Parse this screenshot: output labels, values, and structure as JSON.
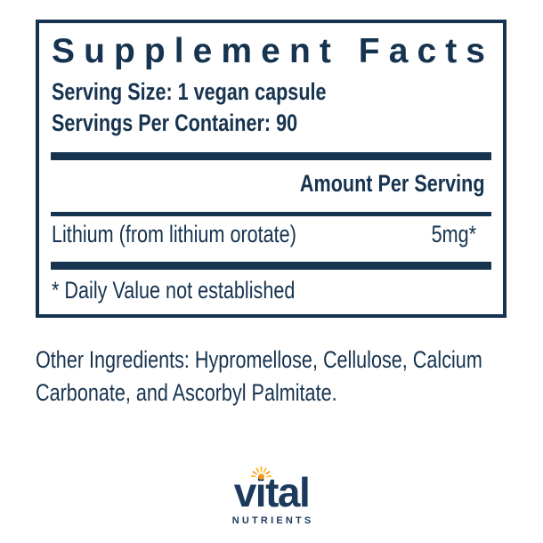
{
  "colors": {
    "navy": "#16334F",
    "logo_navy": "#1B3A5C",
    "sun_orange": "#F7941E",
    "sun_yellow": "#FDB515"
  },
  "facts": {
    "title": "Supplement Facts",
    "serving_size": "Serving Size: 1 vegan capsule",
    "servings_per_container": "Servings Per Container: 90",
    "amount_header": "Amount Per Serving",
    "rows": [
      {
        "name": "Lithium (from lithium orotate)",
        "amount": "5mg*"
      }
    ],
    "footnote": "* Daily Value not established"
  },
  "other_ingredients": {
    "line1": "Other Ingredients: Hypromellose, Cellulose, Calcium",
    "line2": "Carbonate, and Ascorbyl Palmitate."
  },
  "logo": {
    "word": "vital",
    "subtext": "NUTRIENTS"
  }
}
